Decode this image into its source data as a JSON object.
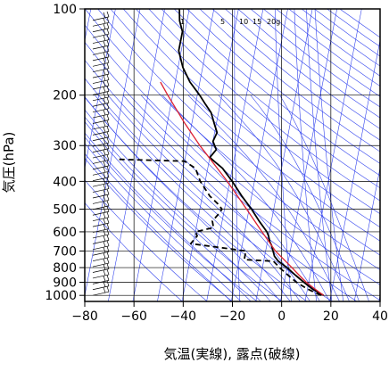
{
  "chart_data": {
    "type": "line",
    "diagram": "skew-T log-P",
    "title": "",
    "xlabel": "気温(実線), 露点(破線)",
    "ylabel": "気圧(hPa)",
    "xlim": [
      -80,
      40
    ],
    "ylim": [
      1050,
      100
    ],
    "y_scale": "log",
    "x_ticks": [
      -80,
      -60,
      -40,
      -20,
      0,
      20,
      40
    ],
    "x_tick_labels": [
      "−80",
      "−60",
      "−40",
      "−20",
      "0",
      "20",
      "40"
    ],
    "y_ticks": [
      1000,
      900,
      800,
      700,
      600,
      500,
      400,
      300,
      200,
      100
    ],
    "mixing_ratio_labels": [
      "1",
      "5",
      "10",
      "15",
      "20g"
    ],
    "grid": true,
    "colors": {
      "temperature": "#000000",
      "dewpoint": "#000000",
      "parcel": "#dd2233",
      "background_lines": "#3344ee",
      "grid": "#000000"
    },
    "series": [
      {
        "key": "temperature",
        "style": "solid",
        "points": [
          {
            "p": 1000,
            "t": 17
          },
          {
            "p": 950,
            "t": 12
          },
          {
            "p": 900,
            "t": 8
          },
          {
            "p": 850,
            "t": 4
          },
          {
            "p": 800,
            "t": 0
          },
          {
            "p": 760,
            "t": -4
          },
          {
            "p": 730,
            "t": -6
          },
          {
            "p": 700,
            "t": -7
          },
          {
            "p": 670,
            "t": -8
          },
          {
            "p": 650,
            "t": -9
          },
          {
            "p": 620,
            "t": -10
          },
          {
            "p": 600,
            "t": -11
          },
          {
            "p": 550,
            "t": -15
          },
          {
            "p": 500,
            "t": -19
          },
          {
            "p": 450,
            "t": -24
          },
          {
            "p": 400,
            "t": -29
          },
          {
            "p": 360,
            "t": -34
          },
          {
            "p": 340,
            "t": -38
          },
          {
            "p": 330,
            "t": -40
          },
          {
            "p": 310,
            "t": -38
          },
          {
            "p": 290,
            "t": -40
          },
          {
            "p": 270,
            "t": -39
          },
          {
            "p": 250,
            "t": -41
          },
          {
            "p": 230,
            "t": -43
          },
          {
            "p": 215,
            "t": -46
          },
          {
            "p": 200,
            "t": -49
          },
          {
            "p": 180,
            "t": -54
          },
          {
            "p": 160,
            "t": -58
          },
          {
            "p": 140,
            "t": -61
          },
          {
            "p": 120,
            "t": -61
          },
          {
            "p": 110,
            "t": -63
          },
          {
            "p": 100,
            "t": -64
          }
        ]
      },
      {
        "key": "dewpoint",
        "style": "dashed",
        "points": [
          {
            "p": 1000,
            "t": 16
          },
          {
            "p": 950,
            "t": 10
          },
          {
            "p": 900,
            "t": 5
          },
          {
            "p": 850,
            "t": 1
          },
          {
            "p": 800,
            "t": -3
          },
          {
            "p": 760,
            "t": -6
          },
          {
            "p": 750,
            "t": -18
          },
          {
            "p": 700,
            "t": -18
          },
          {
            "p": 660,
            "t": -41
          },
          {
            "p": 620,
            "t": -39
          },
          {
            "p": 600,
            "t": -40
          },
          {
            "p": 580,
            "t": -33
          },
          {
            "p": 550,
            "t": -34
          },
          {
            "p": 520,
            "t": -32
          },
          {
            "p": 500,
            "t": -31
          },
          {
            "p": 480,
            "t": -33
          },
          {
            "p": 450,
            "t": -37
          },
          {
            "p": 400,
            "t": -42
          },
          {
            "p": 360,
            "t": -45
          },
          {
            "p": 340,
            "t": -50
          },
          {
            "p": 335,
            "t": -78
          }
        ]
      },
      {
        "key": "parcel",
        "style": "solid",
        "points": [
          {
            "p": 1000,
            "t": 17
          },
          {
            "p": 950,
            "t": 13
          },
          {
            "p": 900,
            "t": 9
          },
          {
            "p": 850,
            "t": 5.5
          },
          {
            "p": 800,
            "t": 2
          },
          {
            "p": 700,
            "t": -6
          },
          {
            "p": 600,
            "t": -13
          },
          {
            "p": 500,
            "t": -21
          },
          {
            "p": 400,
            "t": -31
          },
          {
            "p": 300,
            "t": -45
          },
          {
            "p": 250,
            "t": -53
          },
          {
            "p": 200,
            "t": -62
          },
          {
            "p": 180,
            "t": -66
          }
        ]
      }
    ]
  }
}
